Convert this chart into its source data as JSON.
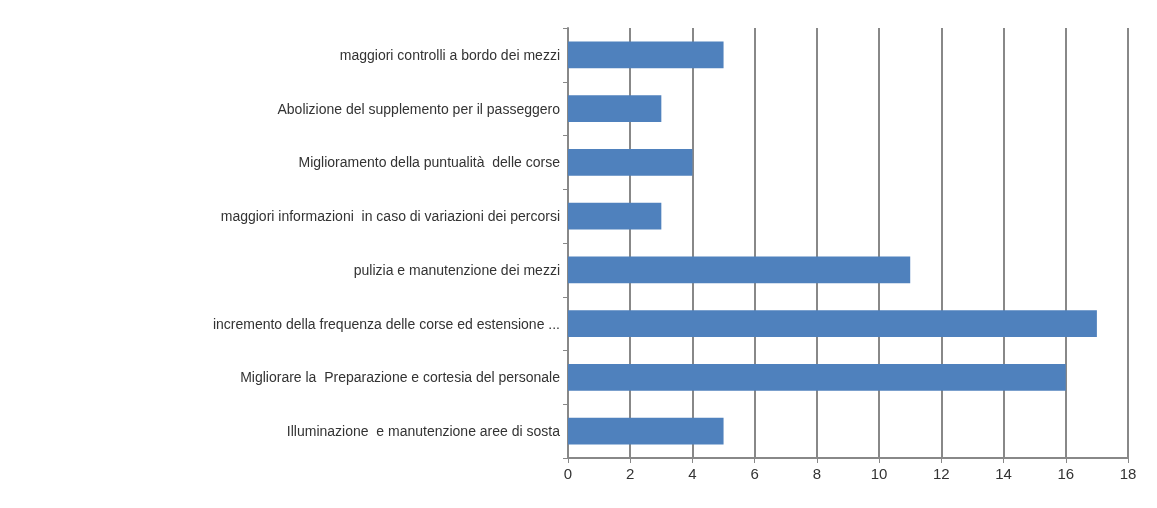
{
  "chart_data": {
    "type": "bar",
    "orientation": "horizontal",
    "categories": [
      "maggiori controlli a bordo dei mezzi",
      "Abolizione del supplemento per il passeggero",
      "Miglioramento della puntualità  delle corse",
      "maggiori informazioni  in caso di variazioni dei percorsi",
      "pulizia e manutenzione dei mezzi",
      "incremento della frequenza delle corse ed estensione ...",
      "Migliorare la  Preparazione e cortesia del personale",
      "Illuminazione  e manutenzione aree di sosta"
    ],
    "values": [
      5,
      3,
      4,
      3,
      11,
      17,
      16,
      5
    ],
    "color": "#4f81bd",
    "xlim": [
      0,
      18
    ],
    "xticks": [
      0,
      2,
      4,
      6,
      8,
      10,
      12,
      14,
      16,
      18
    ],
    "grid": "x"
  }
}
